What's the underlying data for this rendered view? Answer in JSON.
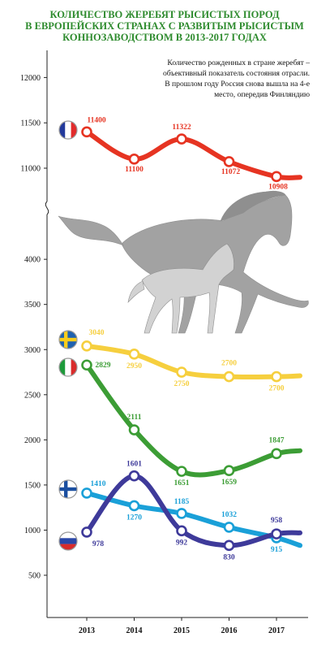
{
  "chart_data": {
    "type": "line",
    "title": [
      "КОЛИЧЕСТВО ЖЕРЕБЯТ РЫСИСТЫХ ПОРОД",
      "В ЕВРОПЕЙСКИХ СТРАНАХ С РАЗВИТЫМ РЫСИСТЫМ",
      "КОННОЗАВОДСТВОМ В 2013-2017 ГОДАХ"
    ],
    "subtitle": [
      "Количество рожденных в стране жеребят –",
      "объективный показатель состояния отрасли.",
      "В прошлом году Россия снова вышла на 4-е",
      "место, опередив Финляндию"
    ],
    "x": [
      "2013",
      "2014",
      "2015",
      "2016",
      "2017"
    ],
    "y_ticks_upper": [
      "12000",
      "11500",
      "11000"
    ],
    "y_ticks_lower": [
      "4000",
      "3500",
      "3000",
      "2500",
      "2000",
      "1500",
      "1000",
      "500"
    ],
    "y_axis_break": true,
    "grid": false,
    "series": [
      {
        "id": "france",
        "values": [
          11400,
          11100,
          11322,
          11072,
          10908
        ],
        "end_value": 10900,
        "color": "#e63422",
        "flag": "france-flag",
        "labels": [
          "11400",
          "11100",
          "11322",
          "11072",
          "10908"
        ]
      },
      {
        "id": "sweden",
        "values": [
          3040,
          2950,
          2750,
          2700,
          2700
        ],
        "end_value": 2710,
        "color": "#f6cf3e",
        "flag": "sweden-flag",
        "labels": [
          "3040",
          "2950",
          "2750",
          "2700",
          "2700"
        ]
      },
      {
        "id": "italy",
        "values": [
          2829,
          2111,
          1651,
          1659,
          1847
        ],
        "end_value": 1880,
        "color": "#3c9d35",
        "flag": "italy-flag",
        "labels": [
          "2829",
          "2111",
          "1651",
          "1659",
          "1847"
        ]
      },
      {
        "id": "finland",
        "values": [
          1410,
          1270,
          1185,
          1032,
          915
        ],
        "end_value": 830,
        "color": "#1aa0d8",
        "flag": "finland-flag",
        "labels": [
          "1410",
          "1270",
          "1185",
          "1032",
          "915"
        ]
      },
      {
        "id": "russia",
        "values": [
          978,
          1601,
          992,
          830,
          958
        ],
        "end_value": 970,
        "color": "#3e3a9a",
        "flag": "russia-flag",
        "labels": [
          "978",
          "1601",
          "992",
          "830",
          "958"
        ]
      }
    ],
    "decoration": "horses-illustration"
  }
}
